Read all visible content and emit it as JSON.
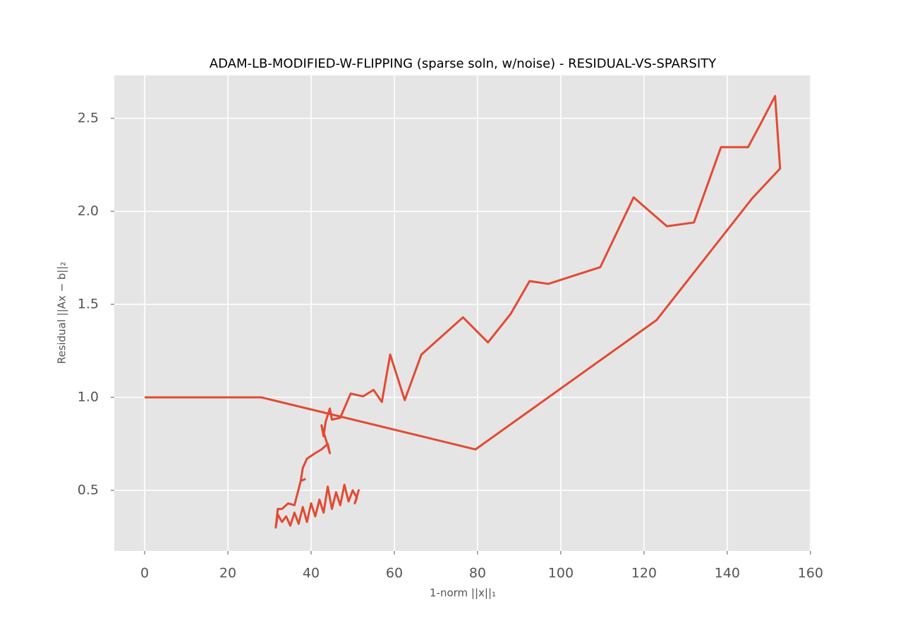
{
  "chart_data": {
    "type": "line",
    "title": "ADAM-LB-MODIFIED-W-FLIPPING (sparse soln, w/noise) - RESIDUAL-VS-SPARSITY",
    "x_label": "1-norm ||x||₁",
    "y_label": "Residual ||Ax − b||₂",
    "xlim": [
      -7.3,
      160.2
    ],
    "ylim": [
      0.174,
      2.731
    ],
    "xticks": [
      0,
      20,
      40,
      60,
      80,
      100,
      120,
      140,
      160
    ],
    "yticks": [
      0.5,
      {
        "value": 1.0,
        "label": "1.0"
      },
      1.5,
      {
        "value": 2.0,
        "label": "2.0"
      },
      2.5
    ],
    "grid": true,
    "series": [
      {
        "color": "#e24a33",
        "x": [
          0,
          28,
          79.5,
          123,
          146,
          152.7,
          151.5,
          148,
          145,
          138.5,
          132,
          125.5,
          117.5,
          109.5,
          97,
          92.5,
          88,
          82.5,
          76.5,
          66.5,
          62.5,
          59,
          57,
          55,
          52.5,
          49.5,
          47,
          45,
          44.5,
          43.5,
          43,
          42.5,
          44,
          44.5,
          44,
          42.5,
          41,
          39,
          38,
          37.5,
          38.5,
          37.5,
          36,
          34.5,
          33,
          32,
          31.5,
          32,
          33,
          34,
          35,
          36,
          37,
          38,
          39,
          40,
          41,
          42,
          43,
          44,
          45,
          46,
          47,
          48,
          49,
          50,
          51,
          50.5,
          51.5
        ],
        "values": [
          1.0,
          1.0,
          0.72,
          1.415,
          2.07,
          2.23,
          2.62,
          2.47,
          2.345,
          2.345,
          1.94,
          1.92,
          2.075,
          1.7,
          1.61,
          1.625,
          1.45,
          1.295,
          1.43,
          1.23,
          0.985,
          1.23,
          0.975,
          1.04,
          1.005,
          1.02,
          0.89,
          0.88,
          0.94,
          0.87,
          0.79,
          0.85,
          0.74,
          0.7,
          0.75,
          0.72,
          0.7,
          0.67,
          0.62,
          0.55,
          0.56,
          0.55,
          0.42,
          0.43,
          0.4,
          0.4,
          0.3,
          0.37,
          0.33,
          0.36,
          0.31,
          0.38,
          0.32,
          0.41,
          0.33,
          0.43,
          0.36,
          0.45,
          0.38,
          0.52,
          0.4,
          0.49,
          0.42,
          0.53,
          0.44,
          0.5,
          0.46,
          0.43,
          0.505
        ]
      }
    ]
  }
}
